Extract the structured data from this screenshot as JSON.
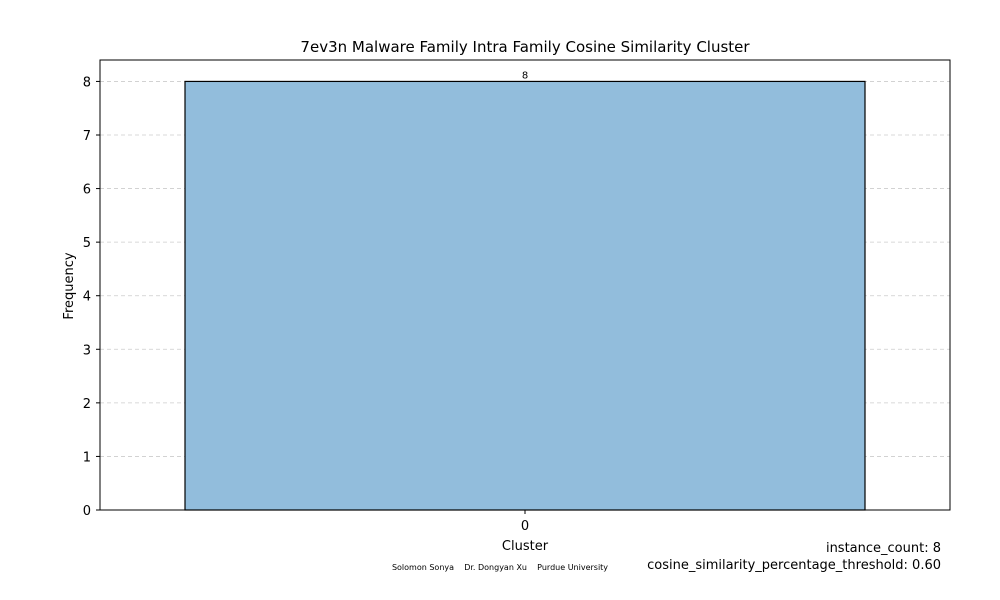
{
  "chart_data": {
    "type": "bar",
    "title": "7ev3n Malware Family Intra Family Cosine Similarity Cluster",
    "xlabel": "Cluster",
    "ylabel": "Frequency",
    "categories": [
      "0"
    ],
    "values": [
      8
    ],
    "data_labels": [
      "8"
    ],
    "ylim": [
      0,
      8.4
    ],
    "yticks": [
      0,
      1,
      2,
      3,
      4,
      5,
      6,
      7,
      8
    ],
    "grid": "y-dashed",
    "bar_color": "#92bddc",
    "bar_edge_color": "#000000",
    "grid_color": "#cccccc"
  },
  "info": {
    "instance_count": "instance_count: 8",
    "threshold": "cosine_similarity_percentage_threshold: 0.60"
  },
  "credits": {
    "text": "Solomon Sonya    Dr. Dongyan Xu    Purdue University"
  }
}
